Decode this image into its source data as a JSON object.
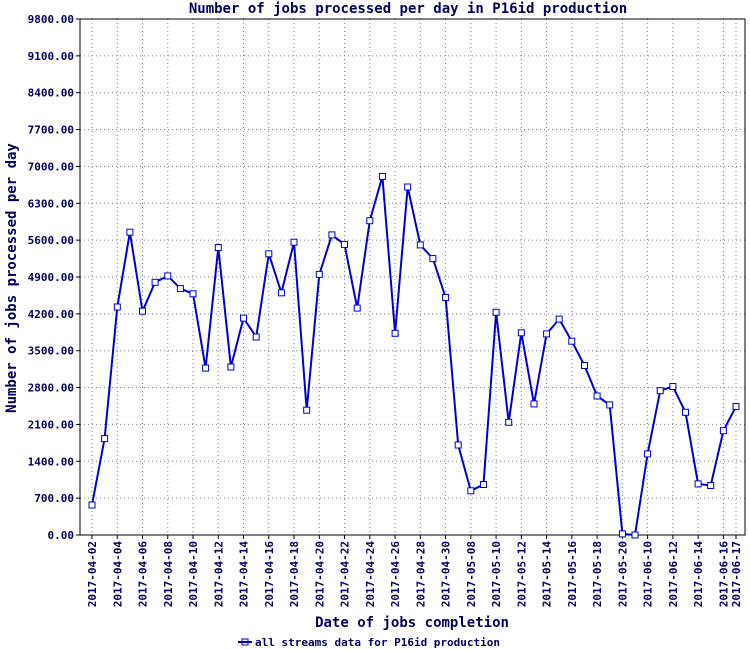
{
  "chart_data": {
    "type": "line",
    "title": "Number of jobs processed per day in P16id production",
    "xlabel": "Date of jobs completion",
    "ylabel": "Number of jobs processed per day",
    "ylim": [
      0,
      9800
    ],
    "y_ticks": [
      "0.00",
      "700.00",
      "1400.00",
      "2100.00",
      "2800.00",
      "3500.00",
      "4200.00",
      "4900.00",
      "5600.00",
      "6300.00",
      "7000.00",
      "7700.00",
      "8400.00",
      "9100.00",
      "9800.00"
    ],
    "x": [
      "2017-04-02",
      "2017-04-03",
      "2017-04-04",
      "2017-04-05",
      "2017-04-06",
      "2017-04-07",
      "2017-04-08",
      "2017-04-09",
      "2017-04-10",
      "2017-04-11",
      "2017-04-12",
      "2017-04-13",
      "2017-04-14",
      "2017-04-15",
      "2017-04-16",
      "2017-04-17",
      "2017-04-18",
      "2017-04-19",
      "2017-04-20",
      "2017-04-21",
      "2017-04-22",
      "2017-04-23",
      "2017-04-24",
      "2017-04-25",
      "2017-04-26",
      "2017-04-27",
      "2017-04-28",
      "2017-04-29",
      "2017-04-30",
      "2017-05-07",
      "2017-05-08",
      "2017-05-09",
      "2017-05-10",
      "2017-05-11",
      "2017-05-12",
      "2017-05-13",
      "2017-05-14",
      "2017-05-15",
      "2017-05-16",
      "2017-05-17",
      "2017-05-18",
      "2017-05-19",
      "2017-05-20",
      "2017-05-21",
      "2017-06-10",
      "2017-06-11",
      "2017-06-12",
      "2017-06-13",
      "2017-06-14",
      "2017-06-15",
      "2017-06-16",
      "2017-06-17"
    ],
    "x_tick_labels": [
      "2017-04-02",
      "2017-04-04",
      "2017-04-06",
      "2017-04-08",
      "2017-04-10",
      "2017-04-12",
      "2017-04-14",
      "2017-04-16",
      "2017-04-18",
      "2017-04-20",
      "2017-04-22",
      "2017-04-24",
      "2017-04-26",
      "2017-04-28",
      "2017-04-30",
      "2017-05-08",
      "2017-05-10",
      "2017-05-12",
      "2017-05-14",
      "2017-05-16",
      "2017-05-18",
      "2017-05-20",
      "2017-06-10",
      "2017-06-12",
      "2017-06-14",
      "2017-06-16",
      "2017-06-17"
    ],
    "series": [
      {
        "name": "all streams data for P16id production",
        "color": "#0000cc",
        "values": [
          570,
          1830,
          4330,
          5750,
          4250,
          4800,
          4920,
          4680,
          4580,
          3170,
          5460,
          3190,
          4120,
          3760,
          5340,
          4600,
          5560,
          2370,
          4950,
          5700,
          5520,
          4310,
          5970,
          6810,
          3830,
          6610,
          5510,
          5250,
          4510,
          1710,
          840,
          960,
          4230,
          2140,
          3840,
          2490,
          3820,
          4100,
          3680,
          3220,
          2640,
          2470,
          20,
          0,
          1540,
          2740,
          2820,
          2330,
          970,
          940,
          1980,
          2440
        ]
      }
    ],
    "grid": true,
    "legend_position": "bottom-left"
  }
}
